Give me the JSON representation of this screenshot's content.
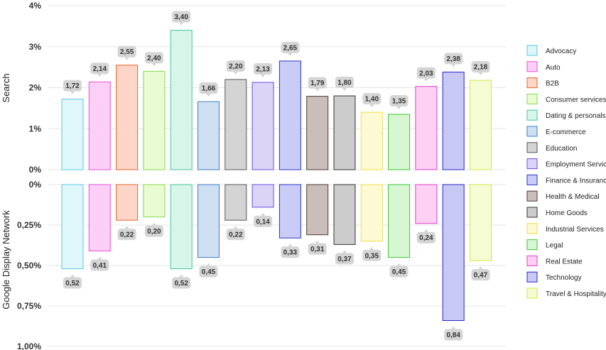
{
  "chart_data": [
    {
      "type": "bar",
      "ylabel": "Search",
      "ylim": [
        0,
        4
      ],
      "yticks": [
        "0%",
        "1%",
        "2%",
        "3%",
        "4%"
      ],
      "grid": true,
      "categories": [
        "Advocacy",
        "Auto",
        "B2B",
        "Consumer services",
        "Dating & personals",
        "E-commerce",
        "Education",
        "Employment Services",
        "Finance & Insurance",
        "Health & Medical",
        "Home Goods",
        "Industrial Services",
        "Legal",
        "Real Estate",
        "Technology",
        "Travel & Hospitality"
      ],
      "values": [
        1.72,
        2.14,
        2.55,
        2.4,
        3.4,
        1.66,
        2.2,
        2.13,
        2.65,
        1.79,
        1.8,
        1.4,
        1.35,
        2.03,
        2.38,
        2.18
      ],
      "value_labels": [
        "1,72",
        "2,14",
        "2,55",
        "2,40",
        "3,40",
        "1,66",
        "2,20",
        "2,13",
        "2,65",
        "1,79",
        "1,80",
        "1,40",
        "1,35",
        "2,03",
        "2,38",
        "2,18"
      ]
    },
    {
      "type": "bar",
      "ylabel": "Google Display Network",
      "ylim": [
        0,
        1
      ],
      "inverted": true,
      "yticks": [
        "0%",
        "0,25%",
        "0,50%",
        "0,75%",
        "1,00%"
      ],
      "grid": true,
      "categories": [
        "Advocacy",
        "Auto",
        "B2B",
        "Consumer services",
        "Dating & personals",
        "E-commerce",
        "Education",
        "Employment Services",
        "Finance & Insurance",
        "Health & Medical",
        "Home Goods",
        "Industrial Services",
        "Legal",
        "Real Estate",
        "Technology",
        "Travel & Hospitality"
      ],
      "values": [
        0.52,
        0.41,
        0.22,
        0.2,
        0.52,
        0.45,
        0.22,
        0.14,
        0.33,
        0.31,
        0.37,
        0.35,
        0.45,
        0.24,
        0.84,
        0.47
      ],
      "value_labels": [
        "0,52",
        "0,41",
        "0,22",
        "0,20",
        "0,52",
        "0,45",
        "0,22",
        "0,14",
        "0,33",
        "0,31",
        "0,37",
        "0,35",
        "0,45",
        "0,24",
        "0,84",
        "0,47"
      ]
    }
  ],
  "legend": {
    "placement": "right",
    "items": [
      {
        "label": "Advocacy",
        "fill": "#dff6fb",
        "stroke": "#57c9e0"
      },
      {
        "label": "Auto",
        "fill": "#fcd0f6",
        "stroke": "#e251d8"
      },
      {
        "label": "B2B",
        "fill": "#fdd6c8",
        "stroke": "#e8642c"
      },
      {
        "label": "Consumer services",
        "fill": "#e9fbd2",
        "stroke": "#89d84c"
      },
      {
        "label": "Dating & personals",
        "fill": "#d8f5ea",
        "stroke": "#43c69d"
      },
      {
        "label": "E-commerce",
        "fill": "#cfdff2",
        "stroke": "#3f7fc8"
      },
      {
        "label": "Education",
        "fill": "#d4d4d4",
        "stroke": "#555555"
      },
      {
        "label": "Employment Services",
        "fill": "#dcd4f7",
        "stroke": "#6b4ce0"
      },
      {
        "label": "Finance & Insurance",
        "fill": "#c9ccf7",
        "stroke": "#2e33c8"
      },
      {
        "label": "Health & Medical",
        "fill": "#c9beba",
        "stroke": "#4d3a34"
      },
      {
        "label": "Home Goods",
        "fill": "#cccccc",
        "stroke": "#333333"
      },
      {
        "label": "Industrial Services",
        "fill": "#fdf9d2",
        "stroke": "#f0de44"
      },
      {
        "label": "Legal",
        "fill": "#d6f7d2",
        "stroke": "#3fc43a"
      },
      {
        "label": "Real Estate",
        "fill": "#fdd0f4",
        "stroke": "#e03ccb"
      },
      {
        "label": "Technology",
        "fill": "#c8c8f5",
        "stroke": "#2a26c4"
      },
      {
        "label": "Travel & Hospitality",
        "fill": "#f5fbd2",
        "stroke": "#d5e745"
      }
    ]
  }
}
